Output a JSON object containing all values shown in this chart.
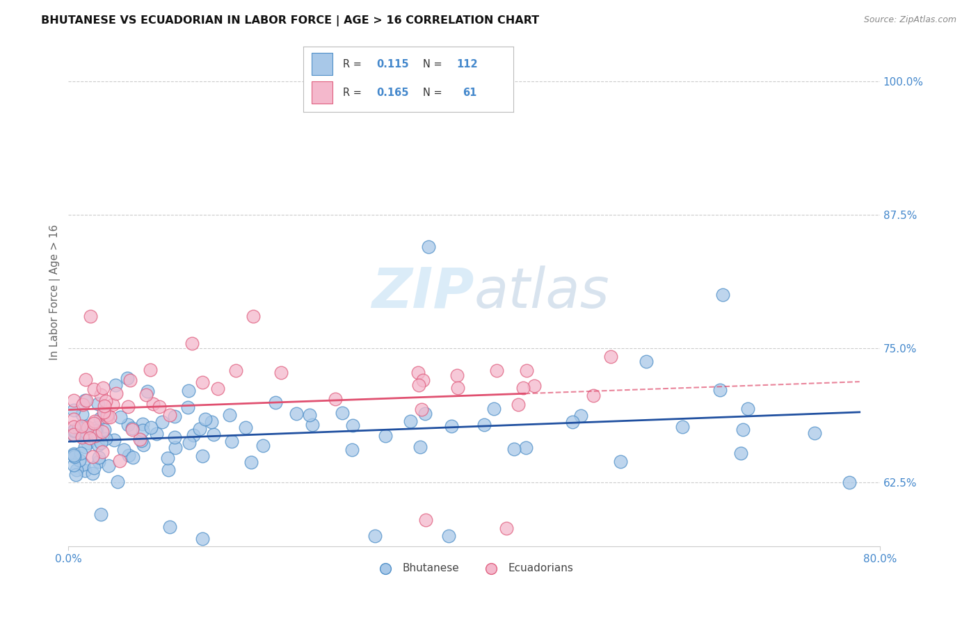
{
  "title": "BHUTANESE VS ECUADORIAN IN LABOR FORCE | AGE > 16 CORRELATION CHART",
  "source": "Source: ZipAtlas.com",
  "ylabel": "In Labor Force | Age > 16",
  "ytick_values": [
    0.625,
    0.75,
    0.875,
    1.0
  ],
  "xmin": 0.0,
  "xmax": 0.8,
  "ymin": 0.565,
  "ymax": 1.04,
  "legend_blue_R": "0.115",
  "legend_blue_N": "112",
  "legend_pink_R": "0.165",
  "legend_pink_N": "61",
  "blue_face": "#a8c8e8",
  "blue_edge": "#5090c8",
  "pink_face": "#f4b8cc",
  "pink_edge": "#e06080",
  "blue_line": "#2050a0",
  "pink_line": "#e05070",
  "watermark_color": "#d8eaf8",
  "background_color": "#ffffff",
  "grid_color": "#cccccc",
  "tick_color": "#4488cc",
  "ylabel_color": "#666666",
  "title_color": "#111111",
  "source_color": "#888888"
}
